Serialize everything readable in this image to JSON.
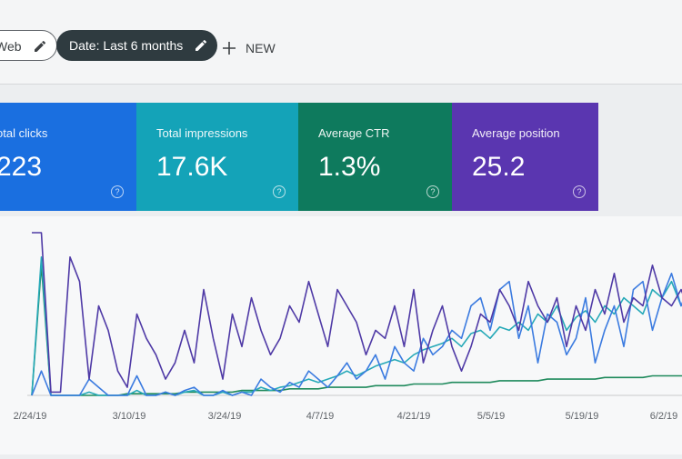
{
  "toolbar": {
    "filters": [
      "Web",
      "Date: Last 6 months"
    ],
    "new_button": "NEW"
  },
  "cards": [
    {
      "label": "otal clicks",
      "value": "223",
      "color": "#1a6fe0"
    },
    {
      "label": "Total impressions",
      "value": "17.6K",
      "color": "#14a3b8"
    },
    {
      "label": "Average CTR",
      "value": "1.3%",
      "color": "#0e7a5d"
    },
    {
      "label": "Average position",
      "value": "25.2",
      "color": "#5a36b0"
    }
  ],
  "chart": {
    "type": "line",
    "x_labels": [
      "2/24/19",
      "3/10/19",
      "3/24/19",
      "4/7/19",
      "4/21/19",
      "5/5/19",
      "5/19/19",
      "6/2/19"
    ],
    "ylim": [
      0,
      100
    ],
    "series": [
      {
        "color": "#4f3aa6",
        "values": [
          100,
          100,
          2,
          2,
          85,
          70,
          10,
          55,
          40,
          15,
          5,
          50,
          35,
          25,
          10,
          20,
          40,
          20,
          65,
          35,
          10,
          50,
          30,
          60,
          40,
          25,
          35,
          55,
          45,
          70,
          50,
          30,
          65,
          55,
          45,
          25,
          40,
          35,
          55,
          30,
          65,
          20,
          40,
          55,
          30,
          15,
          30,
          50,
          45,
          65,
          55,
          40,
          70,
          55,
          45,
          60,
          30,
          55,
          40,
          65,
          50,
          75,
          45,
          60,
          55,
          80,
          60,
          55,
          65,
          50
        ]
      },
      {
        "color": "#3b7be0",
        "values": [
          0,
          15,
          0,
          0,
          0,
          0,
          10,
          5,
          0,
          0,
          0,
          12,
          0,
          0,
          2,
          0,
          3,
          5,
          0,
          0,
          3,
          0,
          2,
          0,
          10,
          5,
          2,
          8,
          5,
          15,
          10,
          5,
          12,
          20,
          10,
          15,
          25,
          10,
          30,
          20,
          15,
          35,
          25,
          30,
          40,
          35,
          55,
          60,
          40,
          65,
          70,
          35,
          55,
          20,
          50,
          45,
          25,
          35,
          60,
          20,
          40,
          55,
          30,
          65,
          70,
          40,
          60,
          75,
          55,
          70
        ]
      },
      {
        "color": "#26a9b8",
        "values": [
          0,
          85,
          0,
          0,
          0,
          0,
          2,
          0,
          0,
          0,
          0,
          3,
          0,
          0,
          2,
          0,
          2,
          3,
          0,
          0,
          2,
          0,
          2,
          2,
          5,
          3,
          5,
          6,
          8,
          10,
          8,
          10,
          12,
          15,
          12,
          15,
          18,
          20,
          22,
          20,
          25,
          28,
          30,
          32,
          35,
          30,
          38,
          40,
          35,
          42,
          40,
          45,
          40,
          50,
          45,
          55,
          40,
          48,
          52,
          45,
          55,
          50,
          60,
          55,
          50,
          65,
          60,
          70,
          55,
          65
        ]
      },
      {
        "color": "#1f8a5c",
        "values": [
          0,
          80,
          0,
          0,
          0,
          0,
          0,
          0,
          0,
          0,
          1,
          1,
          1,
          1,
          1,
          1,
          2,
          2,
          2,
          2,
          2,
          2,
          3,
          3,
          3,
          3,
          3,
          4,
          4,
          4,
          4,
          5,
          5,
          5,
          5,
          5,
          6,
          6,
          6,
          6,
          7,
          7,
          7,
          7,
          8,
          8,
          8,
          8,
          8,
          9,
          9,
          9,
          9,
          9,
          10,
          10,
          10,
          10,
          10,
          10,
          11,
          11,
          11,
          11,
          11,
          12,
          12,
          12,
          12,
          12
        ]
      }
    ]
  }
}
